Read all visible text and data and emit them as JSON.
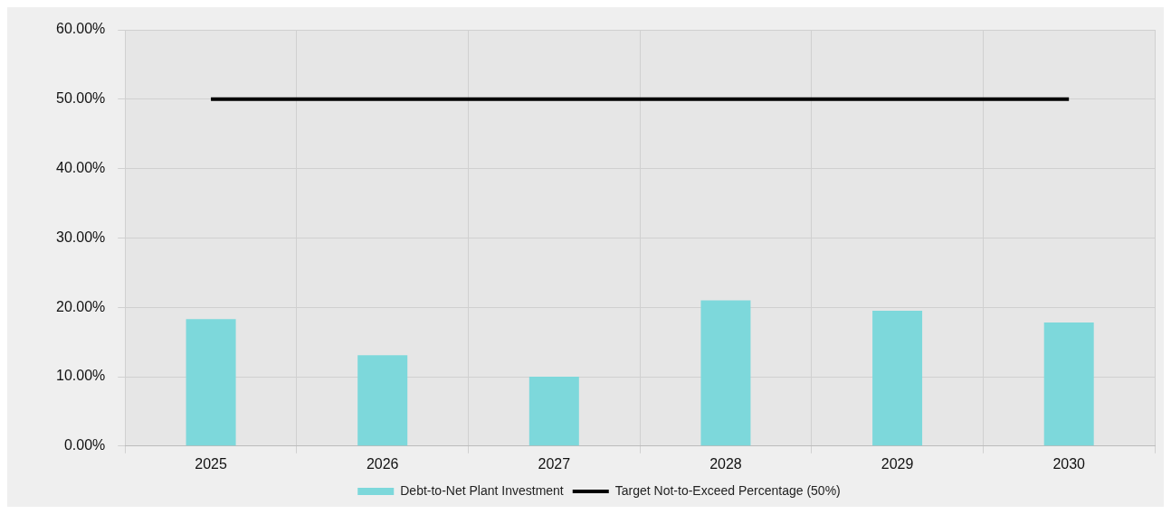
{
  "chart_data": {
    "type": "bar",
    "categories": [
      "2025",
      "2026",
      "2027",
      "2028",
      "2029",
      "2030"
    ],
    "series": [
      {
        "name": "Debt-to-Net Plant Investment",
        "color": "#7dd8db",
        "values": [
          18.3,
          13.1,
          10.0,
          21.0,
          19.5,
          17.8
        ]
      },
      {
        "name": "Target Not-to-Exceed Percentage (50%)",
        "type": "line",
        "color": "#000000",
        "values": [
          50,
          50,
          50,
          50,
          50,
          50
        ]
      }
    ],
    "ylim": [
      0,
      60
    ],
    "yticks": [
      {
        "value": 0,
        "label": "0.00%"
      },
      {
        "value": 10,
        "label": "10.00%"
      },
      {
        "value": 20,
        "label": "20.00%"
      },
      {
        "value": 30,
        "label": "30.00%"
      },
      {
        "value": 40,
        "label": "40.00%"
      },
      {
        "value": 50,
        "label": "50.00%"
      },
      {
        "value": 60,
        "label": "60.00%"
      }
    ],
    "grid": true,
    "legend": "bottom",
    "marker": "none",
    "line_style": "solid"
  }
}
